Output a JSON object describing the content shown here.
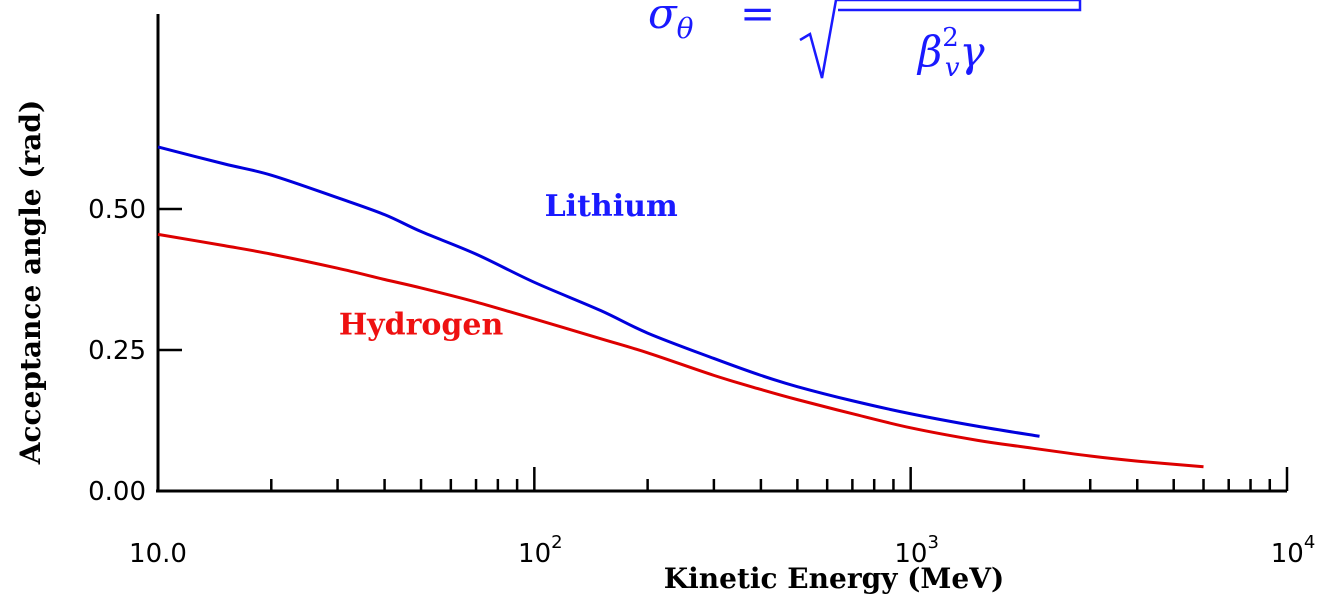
{
  "chart_data": {
    "type": "line",
    "xscale": "log",
    "xlim": [
      10,
      10000
    ],
    "ylim": [
      0,
      0.85
    ],
    "xlabel": "Kinetic Energy (MeV)",
    "ylabel": "Acceptance angle (rad)",
    "x_tick_labels": [
      {
        "value": 10,
        "label": "10.0"
      },
      {
        "value": 100,
        "label": "10",
        "exp": "2"
      },
      {
        "value": 1000,
        "label": "10",
        "exp": "3"
      },
      {
        "value": 10000,
        "label": "10",
        "exp": "4"
      }
    ],
    "y_ticks": [
      {
        "value": 0,
        "label": "0.00"
      },
      {
        "value": 0.25,
        "label": "0.25"
      },
      {
        "value": 0.5,
        "label": "0.50"
      }
    ],
    "series": [
      {
        "name": "Lithium",
        "color": "#0000dd",
        "x": [
          10,
          15,
          20,
          30,
          40,
          50,
          70,
          100,
          150,
          200,
          300,
          400,
          500,
          700,
          1000,
          1500,
          2200
        ],
        "y": [
          0.61,
          0.58,
          0.56,
          0.52,
          0.49,
          0.46,
          0.42,
          0.37,
          0.32,
          0.28,
          0.235,
          0.205,
          0.185,
          0.16,
          0.137,
          0.115,
          0.097
        ]
      },
      {
        "name": "Hydrogen",
        "color": "#dd0000",
        "x": [
          10,
          15,
          20,
          30,
          40,
          50,
          70,
          100,
          150,
          200,
          300,
          400,
          500,
          700,
          1000,
          1500,
          2000,
          3000,
          4000,
          6000
        ],
        "y": [
          0.455,
          0.435,
          0.42,
          0.395,
          0.375,
          0.36,
          0.335,
          0.305,
          0.27,
          0.245,
          0.205,
          0.18,
          0.162,
          0.137,
          0.112,
          0.09,
          0.078,
          0.062,
          0.053,
          0.043
        ]
      }
    ],
    "annotations": [
      {
        "text": "Lithium",
        "color": "#1a1aff",
        "x": 160,
        "y": 0.505
      },
      {
        "text": "Hydrogen",
        "color": "#ee1111",
        "x": 50,
        "y": 0.295
      }
    ],
    "formula": {
      "lhs": "σ",
      "lhs_sub": "θ",
      "equals": "=",
      "denominator": "β",
      "denominator_sup": "2",
      "denominator_sub": "v",
      "denominator_tail": "γ",
      "color": "#1a1aff"
    }
  }
}
